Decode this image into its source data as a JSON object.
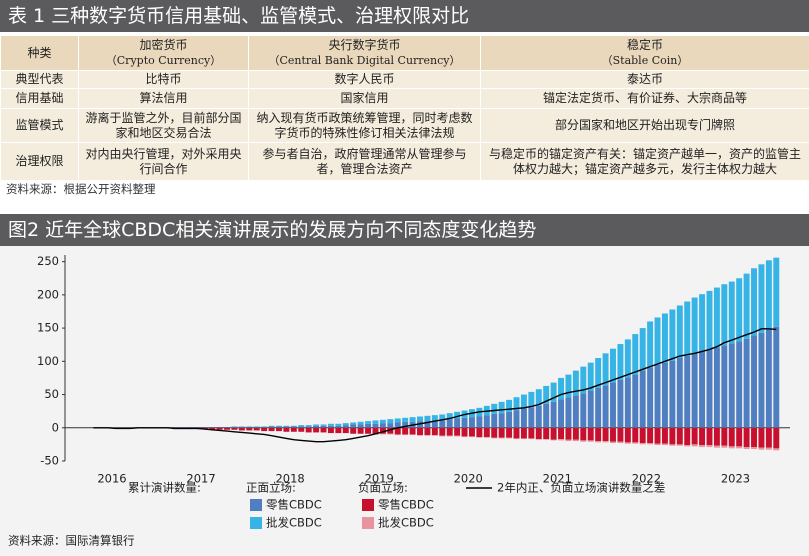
{
  "table_title": "表 1  三种数字货币信用基础、监管模式、治理权限对比",
  "table": {
    "header": {
      "label": "种类",
      "columns": [
        {
          "name": "加密货币",
          "en": "（Crypto Currency）"
        },
        {
          "name": "央行数字货币",
          "en": "（Central Bank Digital Currency）"
        },
        {
          "name": "稳定币",
          "en": "（Stable Coin）"
        }
      ]
    },
    "rows": [
      [
        "典型代表",
        "比特币",
        "数字人民币",
        "泰达币"
      ],
      [
        "信用基础",
        "算法信用",
        "国家信用",
        "锚定法定货币、有价证券、大宗商品等"
      ],
      [
        "监管模式",
        "游离于监管之外，目前部分国家和地区交易合法",
        "纳入现有货币政策统筹管理，同时考虑数字货币的特殊性修订相关法律法规",
        "部分国家和地区开始出现专门牌照"
      ],
      [
        "治理权限",
        "对内由央行管理，对外采用央行间合作",
        "参与者自治，政府管理通常从管理参与者，管理合法资产",
        "与稳定币的锚定资产有关：锚定资产越单一，资产的监管主体权力越大；锚定资产越多元，发行主体权力越大"
      ]
    ],
    "source": "资料来源：根据公开资料整理"
  },
  "chart_data": {
    "type": "bar",
    "title": "图2  近年全球CBDC相关演讲展示的发展方向不同态度变化趋势",
    "source": "资料来源：国际清算银行",
    "legend_title": "累计演讲数量:",
    "ylim": [
      -50,
      260
    ],
    "yticks": [
      -50,
      0,
      50,
      100,
      150,
      200,
      250
    ],
    "grid": false,
    "categories": [
      null,
      null,
      null,
      "2016",
      null,
      null,
      null,
      null,
      null,
      null,
      null,
      null,
      null,
      null,
      null,
      "2017",
      null,
      null,
      null,
      null,
      null,
      null,
      null,
      null,
      null,
      null,
      null,
      "2018",
      null,
      null,
      null,
      null,
      null,
      null,
      null,
      null,
      null,
      null,
      null,
      "2019",
      null,
      null,
      null,
      null,
      null,
      null,
      null,
      null,
      null,
      null,
      null,
      "2020",
      null,
      null,
      null,
      null,
      null,
      null,
      null,
      null,
      null,
      null,
      null,
      "2021",
      null,
      null,
      null,
      null,
      null,
      null,
      null,
      null,
      null,
      null,
      null,
      "2022",
      null,
      null,
      null,
      null,
      null,
      null,
      null,
      null,
      null,
      null,
      null,
      "2023",
      null,
      null,
      null,
      null,
      null
    ],
    "groups": [
      {
        "name": "正面立场:",
        "series": [
          {
            "name": "零售CBDC",
            "color": "#4f7fc0",
            "values": [
              0,
              0,
              0,
              0,
              0,
              0,
              1,
              1,
              1,
              1,
              1,
              1,
              1,
              1,
              1,
              1,
              1,
              1,
              1,
              1,
              1,
              1,
              1,
              1,
              2,
              2,
              2,
              2,
              2,
              2,
              3,
              3,
              3,
              3,
              4,
              5,
              5,
              6,
              6,
              7,
              7,
              8,
              9,
              9,
              10,
              10,
              11,
              11,
              13,
              14,
              15,
              16,
              17,
              19,
              21,
              22,
              24,
              26,
              29,
              31,
              33,
              36,
              39,
              43,
              46,
              49,
              52,
              56,
              60,
              64,
              68,
              72,
              76,
              80,
              86,
              91,
              95,
              98,
              101,
              105,
              108,
              112,
              115,
              118,
              121,
              124,
              127,
              130,
              134,
              139,
              143,
              148,
              152
            ]
          },
          {
            "name": "批发CBDC",
            "color": "#36b4e6",
            "values": [
              0,
              0,
              0,
              0,
              0,
              0,
              0,
              0,
              0,
              0,
              0,
              0,
              0,
              0,
              0,
              0,
              0,
              0,
              0,
              1,
              1,
              1,
              1,
              1,
              1,
              1,
              1,
              1,
              2,
              2,
              2,
              2,
              3,
              3,
              3,
              3,
              4,
              4,
              5,
              5,
              6,
              6,
              6,
              7,
              7,
              8,
              8,
              9,
              9,
              10,
              11,
              12,
              13,
              14,
              15,
              17,
              18,
              20,
              21,
              23,
              25,
              27,
              29,
              32,
              34,
              37,
              40,
              42,
              45,
              48,
              51,
              54,
              57,
              61,
              64,
              69,
              71,
              74,
              77,
              79,
              82,
              84,
              86,
              88,
              90,
              92,
              93,
              95,
              98,
              101,
              103,
              104,
              104
            ]
          }
        ]
      },
      {
        "name": "负面立场:",
        "series": [
          {
            "name": "零售CBDC",
            "color": "#c8102e",
            "values": [
              0,
              0,
              0,
              -1,
              -1,
              -1,
              -1,
              -1,
              -1,
              -1,
              -1,
              -2,
              -2,
              -2,
              -2,
              -2,
              -3,
              -3,
              -3,
              -3,
              -4,
              -4,
              -4,
              -5,
              -5,
              -5,
              -6,
              -6,
              -6,
              -7,
              -7,
              -7,
              -8,
              -8,
              -8,
              -9,
              -9,
              -9,
              -10,
              -9,
              -9,
              -10,
              -10,
              -10,
              -11,
              -11,
              -11,
              -12,
              -12,
              -12,
              -13,
              -13,
              -14,
              -14,
              -15,
              -15,
              -15,
              -16,
              -16,
              -16,
              -17,
              -17,
              -18,
              -17,
              -18,
              -18,
              -19,
              -19,
              -20,
              -20,
              -21,
              -21,
              -22,
              -22,
              -23,
              -23,
              -24,
              -24,
              -25,
              -25,
              -26,
              -25,
              -26,
              -26,
              -27,
              -27,
              -28,
              -28,
              -29,
              -29,
              -30,
              -30,
              -31
            ]
          },
          {
            "name": "批发CBDC",
            "color": "#e8949e",
            "values": [
              0,
              0,
              0,
              0,
              0,
              0,
              0,
              0,
              0,
              0,
              0,
              0,
              0,
              0,
              0,
              0,
              0,
              0,
              0,
              0,
              0,
              0,
              0,
              0,
              0,
              0,
              0,
              0,
              0,
              0,
              0,
              0,
              0,
              0,
              0,
              0,
              0,
              0,
              0,
              -1,
              -1,
              -1,
              -1,
              -1,
              -1,
              -1,
              -1,
              -1,
              -1,
              -1,
              -1,
              -1,
              -1,
              -1,
              -1,
              -1,
              -1,
              -1,
              -1,
              -1,
              -1,
              -1,
              -1,
              -2,
              -2,
              -2,
              -2,
              -2,
              -2,
              -2,
              -2,
              -2,
              -2,
              -2,
              -2,
              -2,
              -2,
              -2,
              -2,
              -2,
              -2,
              -3,
              -3,
              -3,
              -3,
              -3,
              -3,
              -3,
              -3,
              -3,
              -3,
              -3,
              -3
            ]
          }
        ]
      }
    ],
    "line": {
      "name": "2年内正、负面立场演讲数量之差",
      "color": "#000000",
      "values": [
        0,
        0,
        0,
        -1,
        -1,
        -1,
        0,
        0,
        0,
        0,
        0,
        -1,
        -1,
        -1,
        -1,
        -2,
        -3,
        -4,
        -5,
        -6,
        -7,
        -8,
        -9,
        -10,
        -12,
        -14,
        -16,
        -18,
        -19,
        -20,
        -21,
        -21,
        -20,
        -19,
        -18,
        -16,
        -14,
        -12,
        -9,
        -6,
        -3,
        0,
        2,
        4,
        6,
        8,
        10,
        12,
        14,
        17,
        20,
        22,
        24,
        25,
        26,
        27,
        28,
        29,
        30,
        32,
        35,
        40,
        45,
        50,
        53,
        55,
        57,
        60,
        64,
        68,
        72,
        76,
        80,
        84,
        88,
        92,
        96,
        100,
        104,
        108,
        110,
        112,
        115,
        118,
        122,
        128,
        132,
        136,
        140,
        144,
        149,
        149,
        148
      ]
    }
  }
}
